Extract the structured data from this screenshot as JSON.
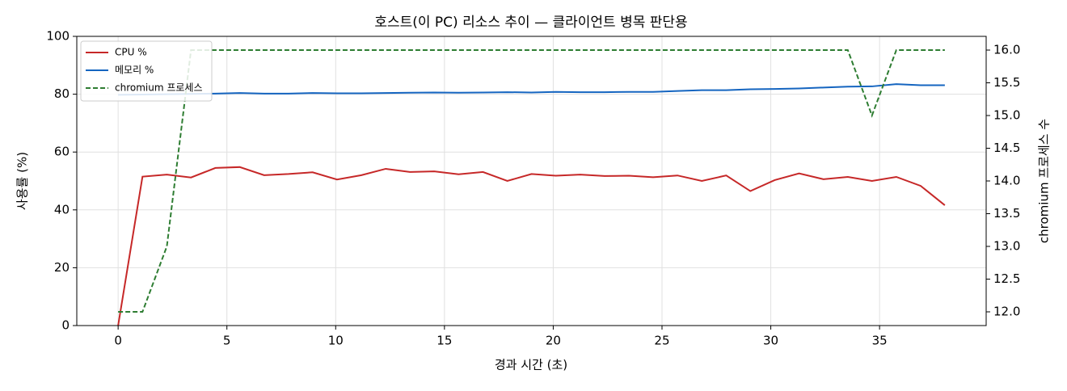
{
  "chart_data": {
    "type": "line",
    "title": "호스트(이 PC) 리소스 추이 — 클라이언트 병목 판단용",
    "x_label": "경과 시간 (초)",
    "y_label": "사용률 (%)",
    "y2_label": "chromium 프로세스 수",
    "x": [
      0,
      1.12,
      2.24,
      3.35,
      4.47,
      5.59,
      6.71,
      7.83,
      8.94,
      10.06,
      11.18,
      12.3,
      13.41,
      14.53,
      15.65,
      16.77,
      17.89,
      19.0,
      20.12,
      21.24,
      22.36,
      23.48,
      24.59,
      25.71,
      26.83,
      27.95,
      29.06,
      30.18,
      31.3,
      32.42,
      33.54,
      34.65,
      35.77,
      36.89,
      38.0
    ],
    "series": [
      {
        "name": "CPU %",
        "color": "#c62828",
        "dash": false,
        "values": [
          0,
          51.5,
          52.2,
          51.2,
          54.5,
          54.8,
          52,
          52.4,
          53,
          50.5,
          52,
          54.2,
          53.1,
          53.3,
          52.3,
          53.1,
          50,
          52.4,
          51.8,
          52.2,
          51.7,
          51.8,
          51.3,
          51.9,
          50,
          51.9,
          46.5,
          50.3,
          52.6,
          50.6,
          51.4,
          50,
          51.4,
          48.3,
          41.6
        ]
      },
      {
        "name": "메모리 %",
        "color": "#1565c0",
        "dash": false,
        "values": [
          79.8,
          79.9,
          80.0,
          80.1,
          80.2,
          80.4,
          80.2,
          80.2,
          80.4,
          80.3,
          80.3,
          80.4,
          80.5,
          80.6,
          80.5,
          80.6,
          80.7,
          80.6,
          80.8,
          80.7,
          80.7,
          80.8,
          80.8,
          81.1,
          81.4,
          81.4,
          81.7,
          81.8,
          82.0,
          82.3,
          82.6,
          82.7,
          83.5,
          83.1,
          83.1
        ]
      },
      {
        "name": "chromium 프로세스",
        "color": "#2e7d32",
        "dash": true,
        "axis": "y2",
        "values": [
          12,
          12,
          13,
          16,
          16,
          16,
          16,
          16,
          16,
          16,
          16,
          16,
          16,
          16,
          16,
          16,
          16,
          16,
          16,
          16,
          16,
          16,
          16,
          16,
          16,
          16,
          16,
          16,
          16,
          16,
          16,
          15,
          16,
          16,
          16
        ]
      }
    ],
    "xlim": [
      -1.9,
      39.9
    ],
    "xticks": [
      0,
      5,
      10,
      15,
      20,
      25,
      30,
      35
    ],
    "ylim": [
      0,
      100
    ],
    "yticks": [
      0,
      20,
      40,
      60,
      80,
      100
    ],
    "y2lim": [
      11.79,
      16.21
    ],
    "y2ticks": [
      {
        "value": 12,
        "label": "12.0"
      },
      {
        "value": 12.5,
        "label": "12.5"
      },
      {
        "value": 13,
        "label": "13.0"
      },
      {
        "value": 13.5,
        "label": "13.5"
      },
      {
        "value": 14,
        "label": "14.0"
      },
      {
        "value": 14.5,
        "label": "14.5"
      },
      {
        "value": 15,
        "label": "15.0"
      },
      {
        "value": 15.5,
        "label": "15.5"
      },
      {
        "value": 16,
        "label": "16.0"
      }
    ],
    "grid": true,
    "legend": "upper left"
  }
}
